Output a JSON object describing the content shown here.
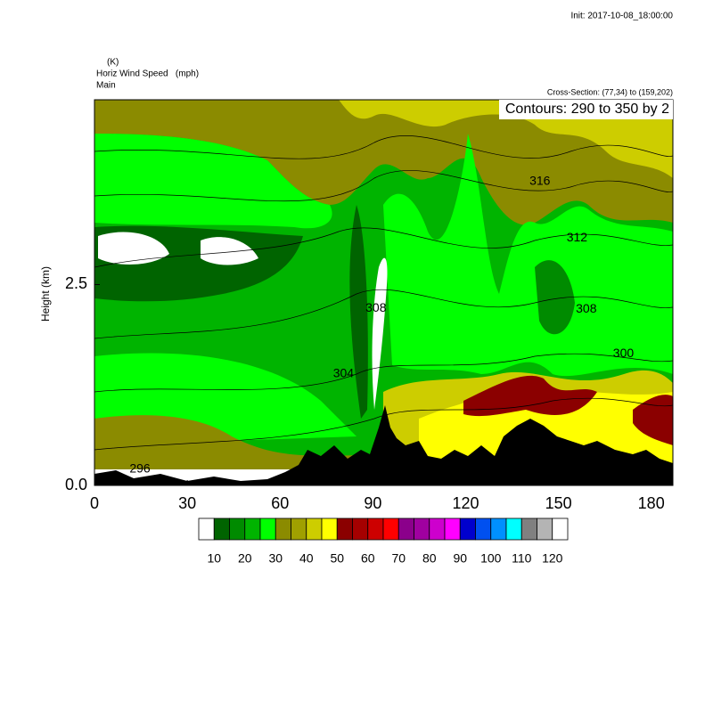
{
  "header": {
    "init": "Init: 2017-10-08_18:00:00",
    "units": "(K)",
    "field": "Horiz Wind Speed   (mph)",
    "domain": "Main",
    "cross_section": "Cross-Section: (77,34) to (159,202)",
    "contours": "Contours: 290 to 350 by 2"
  },
  "chart_data": {
    "type": "contour",
    "y_label": "Height (km)",
    "xlim": [
      0,
      187
    ],
    "ylim": [
      0,
      4.8
    ],
    "xticks": [
      0,
      30,
      60,
      90,
      120,
      150,
      180
    ],
    "yticks": [
      {
        "value": 0,
        "label": "0.0"
      },
      {
        "value": 2.5,
        "label": "2.5"
      }
    ],
    "contour_labels": [
      {
        "label": "316",
        "x": 144,
        "y": 3.78
      },
      {
        "label": "312",
        "x": 156,
        "y": 3.08
      },
      {
        "label": "308",
        "x": 91,
        "y": 2.2
      },
      {
        "label": "308",
        "x": 159,
        "y": 2.19
      },
      {
        "label": "304",
        "x": 80.5,
        "y": 1.39
      },
      {
        "label": "300",
        "x": 171,
        "y": 1.64
      },
      {
        "label": "296",
        "x": 14.7,
        "y": 0.2
      }
    ],
    "colorbar": {
      "colors": [
        "#ffffff",
        "#006400",
        "#008b00",
        "#00b400",
        "#00ff00",
        "#8b8b00",
        "#a0a000",
        "#cdcd00",
        "#ffff00",
        "#8b0000",
        "#a50000",
        "#cd0000",
        "#ff0000",
        "#8b008b",
        "#a000a0",
        "#cd00cd",
        "#ff00ff",
        "#0000cd",
        "#0050f0",
        "#0090ff",
        "#00ffff",
        "#808080",
        "#b4b4b4",
        "#ffffff"
      ],
      "labels": [
        10,
        20,
        30,
        40,
        50,
        60,
        70,
        80,
        90,
        100,
        110,
        120
      ]
    }
  }
}
